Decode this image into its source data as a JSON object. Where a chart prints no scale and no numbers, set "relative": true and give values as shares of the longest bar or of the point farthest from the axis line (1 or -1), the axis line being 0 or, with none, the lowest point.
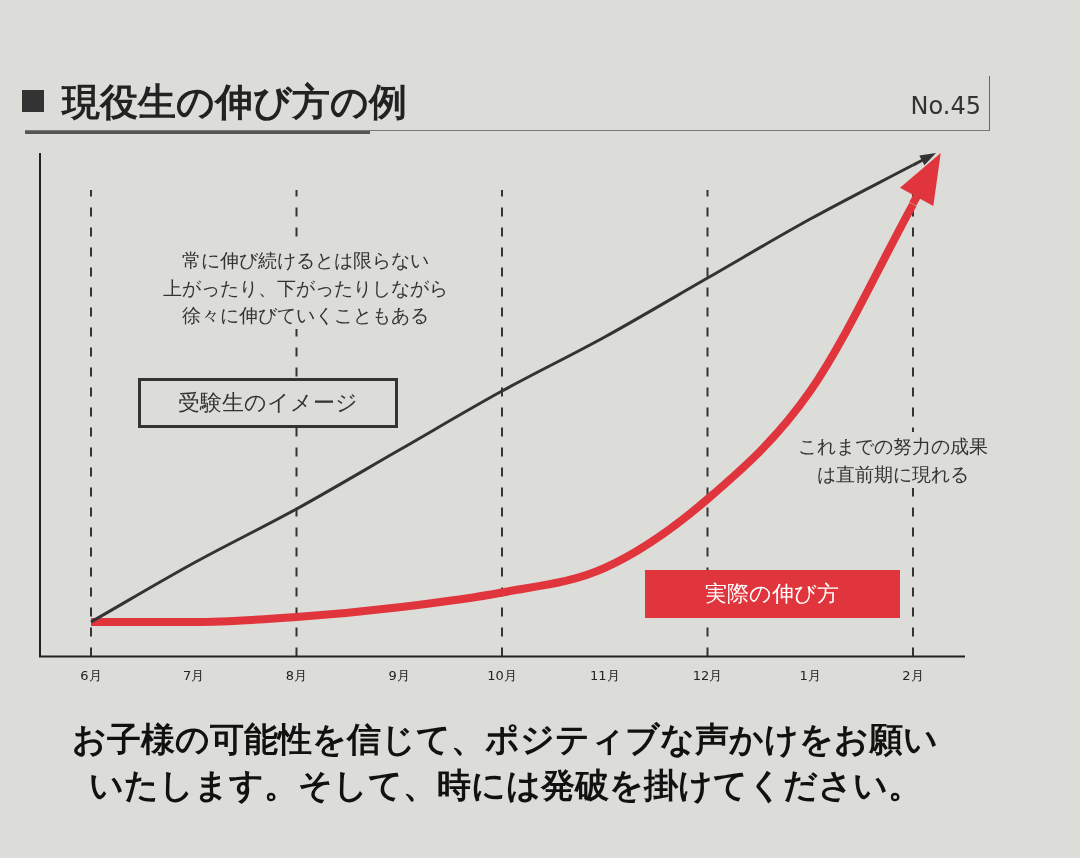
{
  "chart_data": {
    "type": "line",
    "title": "現役生の伸び方の例",
    "relative": true,
    "categories": [
      "6月",
      "7月",
      "8月",
      "9月",
      "10月",
      "11月",
      "12月",
      "1月",
      "2月"
    ],
    "series": [
      {
        "name": "受験生のイメージ",
        "color": "#333333",
        "values": [
          0.07,
          0.19,
          0.3,
          0.42,
          0.54,
          0.65,
          0.77,
          0.89,
          1
        ]
      },
      {
        "name": "実際の伸び方",
        "color": "#e0353c",
        "values": [
          0.07,
          0.07,
          0.08,
          0.1,
          0.13,
          0.18,
          0.32,
          0.54,
          0.92
        ]
      }
    ],
    "ref_lines": [
      {
        "axis": "x",
        "value": "6月",
        "color": "#333333",
        "line_style": "dashed"
      },
      {
        "axis": "x",
        "value": "8月",
        "color": "#333333",
        "line_style": "dashed"
      },
      {
        "axis": "x",
        "value": "10月",
        "color": "#333333",
        "line_style": "dashed"
      },
      {
        "axis": "x",
        "value": "12月",
        "color": "#333333",
        "line_style": "dashed"
      },
      {
        "axis": "x",
        "value": "2月",
        "color": "#333333",
        "line_style": "dashed"
      }
    ],
    "annotations": [
      "No.45",
      "常に伸び続けるとは限らない",
      "上がったり、下がったりしながら",
      "徐々に伸びていくこともある",
      "これまでの努力の成果は直前期に現れる",
      "お子様の可能性を信じて、ポジティブな声かけをお願いいたします。そして、時には発破を掛けてください。"
    ],
    "legend": false,
    "grid": false,
    "marker": "none",
    "line_style": "solid"
  }
}
